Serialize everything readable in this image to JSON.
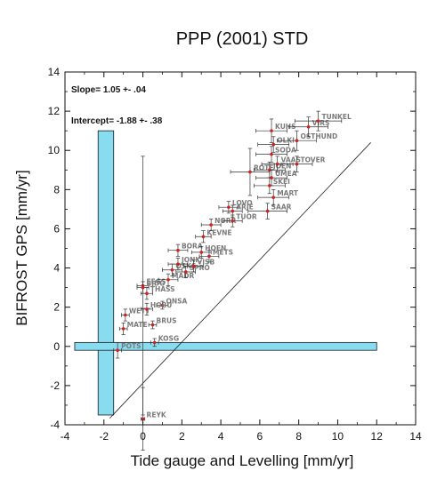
{
  "chart_data": {
    "type": "scatter",
    "title": "PPP (2001) STD",
    "xlabel": "Tide gauge and Levelling [mm/yr]",
    "ylabel": "BIFROST GPS [mm/yr]",
    "xlim": [
      -4,
      14
    ],
    "ylim": [
      -4,
      14
    ],
    "xticks": [
      -4,
      -2,
      0,
      2,
      4,
      6,
      8,
      10,
      12,
      14
    ],
    "yticks": [
      -4,
      -2,
      0,
      2,
      4,
      6,
      8,
      10,
      12,
      14
    ],
    "grid": false,
    "annotations": {
      "slope": "Slope= 1.05 +- .04",
      "intercept": "Intercept= -1.88 +- .38"
    },
    "fit_line": {
      "slope": 1.05,
      "intercept": -1.88
    },
    "shaded_bands": [
      {
        "orientation": "vertical",
        "x": [
          -2.3,
          -1.5
        ],
        "y": [
          -3.5,
          11
        ],
        "color": "#87dcf0"
      },
      {
        "orientation": "horizontal",
        "x": [
          -3.5,
          12
        ],
        "y": [
          -0.2,
          0.2
        ],
        "color": "#87dcf0"
      }
    ],
    "points": [
      {
        "label": "REYK",
        "x": 0.0,
        "y": -3.7,
        "xerr": 0.1,
        "yerr": 1.6
      },
      {
        "label": "POTS",
        "x": -1.3,
        "y": -0.2,
        "xerr": 0.2,
        "yerr": 0.4
      },
      {
        "label": "KOSG",
        "x": 0.6,
        "y": 0.2,
        "xerr": 0.2,
        "yerr": 0.2
      },
      {
        "label": "MATE",
        "x": -1.0,
        "y": 0.9,
        "xerr": 0.2,
        "yerr": 0.3
      },
      {
        "label": "BRUS",
        "x": 0.5,
        "y": 1.1,
        "xerr": 0.2,
        "yerr": 0.2
      },
      {
        "label": "WETT",
        "x": -0.9,
        "y": 1.6,
        "xerr": 0.2,
        "yerr": 0.3
      },
      {
        "label": "ONSA",
        "x": 1.0,
        "y": 2.1,
        "xerr": 0.3,
        "yerr": 0.2
      },
      {
        "label": "HOBU",
        "x": 0.2,
        "y": 1.9,
        "xerr": 0.3,
        "yerr": 0.3
      },
      {
        "label": "THASS",
        "x": 0.2,
        "y": 2.7,
        "xerr": 0.3,
        "yerr": 0.3
      },
      {
        "label": "FEGS",
        "x": 0.0,
        "y": 3.1,
        "xerr": 0.3,
        "yerr": 6.6
      },
      {
        "label": "BJDO",
        "x": 0.0,
        "y": 3.0,
        "xerr": 0.3,
        "yerr": 0.3
      },
      {
        "label": "MADR",
        "x": 1.3,
        "y": 3.4,
        "xerr": 0.5,
        "yerr": 0.3
      },
      {
        "label": "OSKS",
        "x": 1.5,
        "y": 3.9,
        "xerr": 0.5,
        "yerr": 0.3
      },
      {
        "label": "JONK",
        "x": 1.8,
        "y": 4.2,
        "xerr": 0.5,
        "yerr": 0.3
      },
      {
        "label": "SPRO",
        "x": 2.2,
        "y": 3.8,
        "xerr": 0.5,
        "yerr": 0.3
      },
      {
        "label": "VISB",
        "x": 2.6,
        "y": 4.1,
        "xerr": 0.5,
        "yerr": 0.3
      },
      {
        "label": "BORA",
        "x": 1.8,
        "y": 4.9,
        "xerr": 0.5,
        "yerr": 0.3
      },
      {
        "label": "HOEN",
        "x": 3.0,
        "y": 4.8,
        "xerr": 0.5,
        "yerr": 0.3
      },
      {
        "label": "METS",
        "x": 3.4,
        "y": 4.6,
        "xerr": 0.5,
        "yerr": 0.3
      },
      {
        "label": "KEVNE",
        "x": 3.1,
        "y": 5.6,
        "xerr": 0.4,
        "yerr": 0.3
      },
      {
        "label": "NORR",
        "x": 3.5,
        "y": 6.2,
        "xerr": 0.5,
        "yerr": 0.3
      },
      {
        "label": "LOVO",
        "x": 4.4,
        "y": 7.1,
        "xerr": 0.5,
        "yerr": 0.3
      },
      {
        "label": "ARJE",
        "x": 4.6,
        "y": 6.9,
        "xerr": 0.5,
        "yerr": 0.3
      },
      {
        "label": "TUOR",
        "x": 4.6,
        "y": 6.4,
        "xerr": 0.5,
        "yerr": 0.3
      },
      {
        "label": "SAAR",
        "x": 6.4,
        "y": 6.9,
        "xerr": 1.0,
        "yerr": 0.4
      },
      {
        "label": "MART",
        "x": 6.7,
        "y": 7.6,
        "xerr": 0.8,
        "yerr": 0.4
      },
      {
        "label": "ROTE",
        "x": 5.5,
        "y": 8.9,
        "xerr": 1.0,
        "yerr": 1.2
      },
      {
        "label": "JOEN",
        "x": 6.5,
        "y": 9.0,
        "xerr": 0.8,
        "yerr": 0.4
      },
      {
        "label": "UMEA",
        "x": 6.6,
        "y": 8.6,
        "xerr": 0.8,
        "yerr": 0.4
      },
      {
        "label": "SKEI",
        "x": 6.5,
        "y": 8.2,
        "xerr": 0.8,
        "yerr": 0.4
      },
      {
        "label": "VAAS",
        "x": 6.9,
        "y": 9.3,
        "xerr": 0.8,
        "yerr": 0.4
      },
      {
        "label": "SODA",
        "x": 6.6,
        "y": 9.8,
        "xerr": 0.8,
        "yerr": 0.4
      },
      {
        "label": "OLKI",
        "x": 6.7,
        "y": 10.3,
        "xerr": 0.8,
        "yerr": 0.4
      },
      {
        "label": "TOVER",
        "x": 7.9,
        "y": 9.3,
        "xerr": 0.8,
        "yerr": 0.4
      },
      {
        "label": "KUHS",
        "x": 6.6,
        "y": 11.0,
        "xerr": 0.8,
        "yerr": 0.6
      },
      {
        "label": "OSTHUND",
        "x": 7.9,
        "y": 10.5,
        "xerr": 1.0,
        "yerr": 0.5
      },
      {
        "label": "VIRS",
        "x": 8.5,
        "y": 11.2,
        "xerr": 1.0,
        "yerr": 0.5
      },
      {
        "label": "TUNKEL",
        "x": 9.0,
        "y": 11.5,
        "xerr": 1.2,
        "yerr": 0.5
      }
    ]
  }
}
